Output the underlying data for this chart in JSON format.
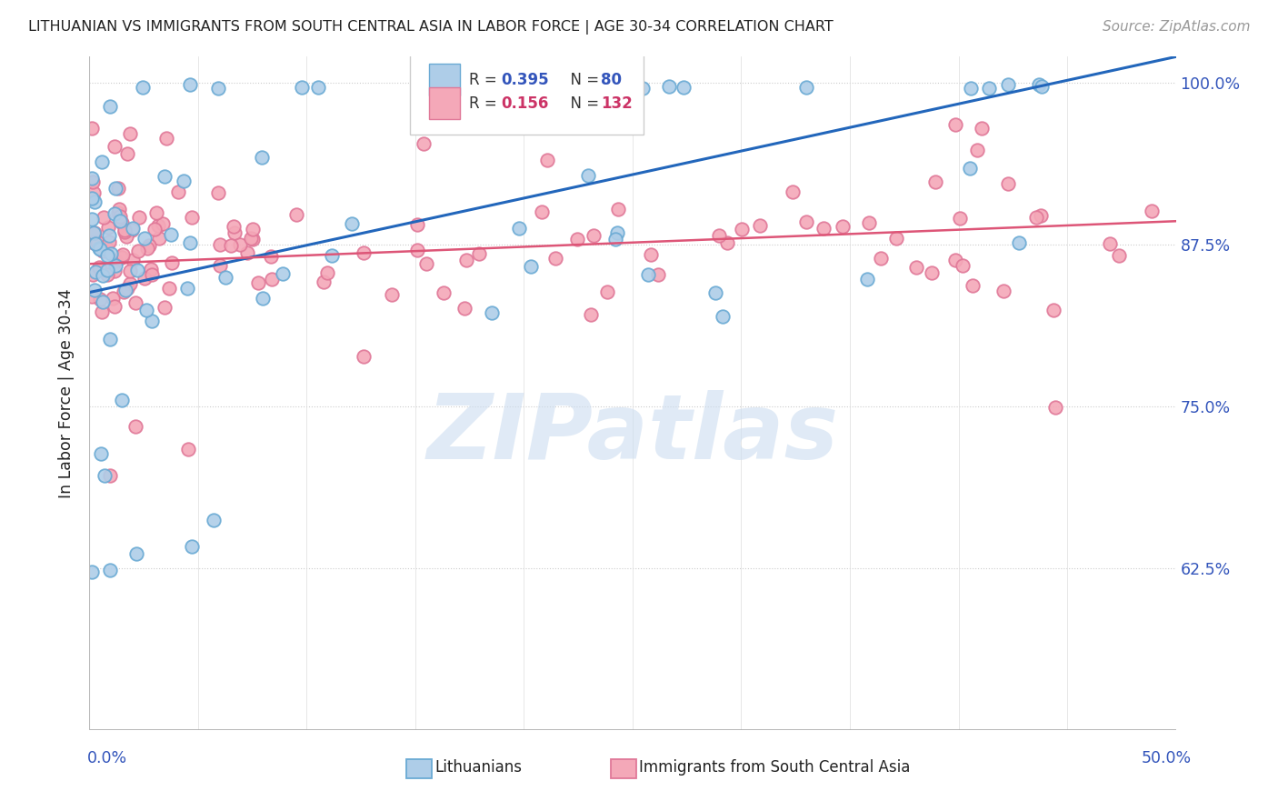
{
  "title": "LITHUANIAN VS IMMIGRANTS FROM SOUTH CENTRAL ASIA IN LABOR FORCE | AGE 30-34 CORRELATION CHART",
  "source": "Source: ZipAtlas.com",
  "ylabel": "In Labor Force | Age 30-34",
  "ytick_labels": [
    "100.0%",
    "87.5%",
    "75.0%",
    "62.5%"
  ],
  "ytick_values": [
    1.0,
    0.875,
    0.75,
    0.625
  ],
  "xmin": 0.0,
  "xmax": 0.5,
  "ymin": 0.5,
  "ymax": 1.02,
  "legend_r1": "0.395",
  "legend_n1": "80",
  "legend_r2": "0.156",
  "legend_n2": "132",
  "blue_face": "#aecde8",
  "blue_edge": "#6aaad4",
  "pink_face": "#f4a8b8",
  "pink_edge": "#e07898",
  "blue_line": "#2266bb",
  "pink_line": "#dd5577",
  "blue_line_x0": 0.0,
  "blue_line_y0": 0.838,
  "blue_line_x1": 0.5,
  "blue_line_y1": 1.02,
  "pink_line_x0": 0.0,
  "pink_line_y0": 0.86,
  "pink_line_x1": 0.5,
  "pink_line_y1": 0.893,
  "watermark_text": "ZIPatlas",
  "watermark_color": "#ccddf0",
  "scatter_size": 110,
  "blue_seed": 12,
  "pink_seed": 7
}
